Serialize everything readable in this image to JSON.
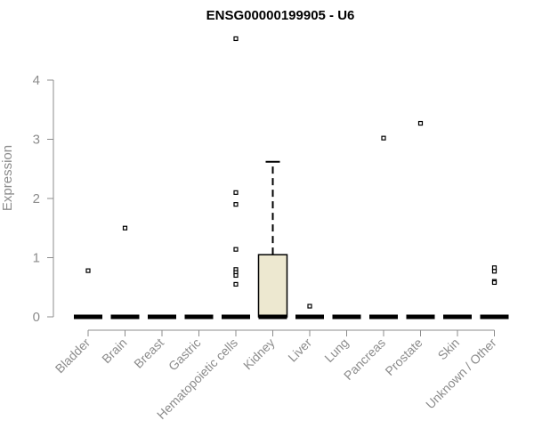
{
  "chart_data": {
    "type": "boxplot",
    "title": "ENSG00000199905 - U6",
    "ylabel": "Expression",
    "ylim": [
      0,
      4.7
    ],
    "yticks": [
      "0",
      "1",
      "2",
      "3",
      "4"
    ],
    "categories": [
      "Bladder",
      "Brain",
      "Breast",
      "Gastric",
      "Hematopoietic cells",
      "Kidney",
      "Liver",
      "Lung",
      "Pancreas",
      "Prostate",
      "Skin",
      "Unknown / Other"
    ],
    "boxes": [
      {
        "category": "Bladder",
        "q1": 0,
        "median": 0,
        "q3": 0,
        "whisker_low": 0,
        "whisker_high": 0,
        "outliers": [
          0.78
        ]
      },
      {
        "category": "Brain",
        "q1": 0,
        "median": 0,
        "q3": 0,
        "whisker_low": 0,
        "whisker_high": 0,
        "outliers": [
          1.5
        ]
      },
      {
        "category": "Breast",
        "q1": 0,
        "median": 0,
        "q3": 0,
        "whisker_low": 0,
        "whisker_high": 0,
        "outliers": []
      },
      {
        "category": "Gastric",
        "q1": 0,
        "median": 0,
        "q3": 0,
        "whisker_low": 0,
        "whisker_high": 0,
        "outliers": []
      },
      {
        "category": "Hematopoietic cells",
        "q1": 0,
        "median": 0,
        "q3": 0,
        "whisker_low": 0,
        "whisker_high": 0,
        "outliers": [
          4.7,
          2.1,
          1.9,
          1.14,
          0.8,
          0.75,
          0.7,
          0.55
        ]
      },
      {
        "category": "Kidney",
        "q1": 0,
        "median": 0,
        "q3": 1.05,
        "whisker_low": 0,
        "whisker_high": 2.62,
        "outliers": []
      },
      {
        "category": "Liver",
        "q1": 0,
        "median": 0,
        "q3": 0,
        "whisker_low": 0,
        "whisker_high": 0,
        "outliers": [
          0.18
        ]
      },
      {
        "category": "Lung",
        "q1": 0,
        "median": 0,
        "q3": 0,
        "whisker_low": 0,
        "whisker_high": 0,
        "outliers": []
      },
      {
        "category": "Pancreas",
        "q1": 0,
        "median": 0,
        "q3": 0,
        "whisker_low": 0,
        "whisker_high": 0,
        "outliers": [
          3.02
        ]
      },
      {
        "category": "Prostate",
        "q1": 0,
        "median": 0,
        "q3": 0,
        "whisker_low": 0,
        "whisker_high": 0,
        "outliers": [
          3.27
        ]
      },
      {
        "category": "Skin",
        "q1": 0,
        "median": 0,
        "q3": 0,
        "whisker_low": 0,
        "whisker_high": 0,
        "outliers": []
      },
      {
        "category": "Unknown / Other",
        "q1": 0,
        "median": 0,
        "q3": 0,
        "whisker_low": 0,
        "whisker_high": 0,
        "outliers": [
          0.83,
          0.77,
          0.6,
          0.58
        ]
      }
    ],
    "box_fill": "#ede8d0",
    "axis_color": "#8c8c8c",
    "grid": false,
    "legend": "none"
  }
}
